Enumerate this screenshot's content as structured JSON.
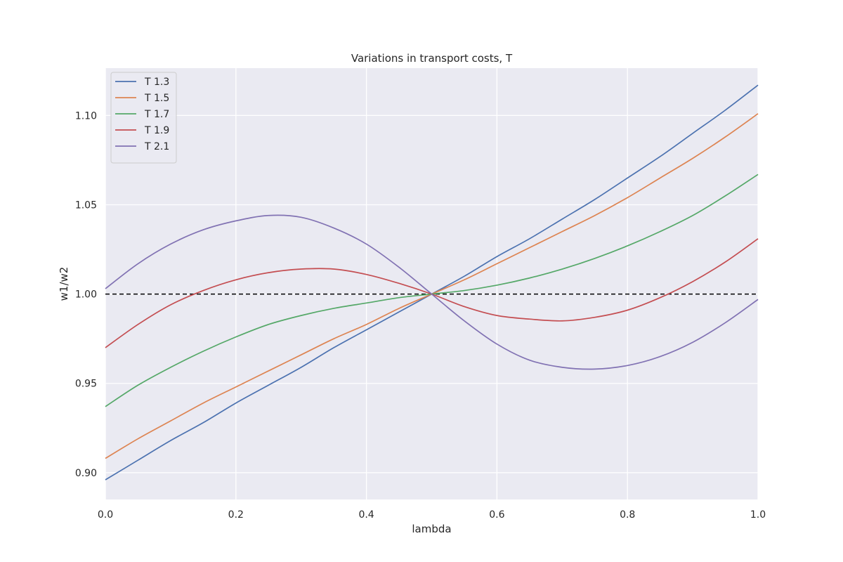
{
  "chart_data": {
    "type": "line",
    "title": "Variations in transport costs, T",
    "xlabel": "lambda",
    "ylabel": "w1/w2",
    "xlim": [
      0.0,
      1.0
    ],
    "ylim": [
      0.885,
      1.1265
    ],
    "xticks": [
      0.0,
      0.2,
      0.4,
      0.6,
      0.8,
      1.0
    ],
    "xtick_labels": [
      "0.0",
      "0.2",
      "0.4",
      "0.6",
      "0.8",
      "1.0"
    ],
    "yticks": [
      0.9,
      0.95,
      1.0,
      1.05,
      1.1
    ],
    "ytick_labels": [
      "0.90",
      "0.95",
      "1.00",
      "1.05",
      "1.10"
    ],
    "grid": true,
    "background": "#eaeaf2",
    "legend_position": "upper-left",
    "reference_line": {
      "y": 1.0,
      "style": "dashed",
      "color": "#000000"
    },
    "x": [
      0.0,
      0.05,
      0.1,
      0.15,
      0.2,
      0.25,
      0.3,
      0.35,
      0.4,
      0.45,
      0.5,
      0.55,
      0.6,
      0.65,
      0.7,
      0.75,
      0.8,
      0.85,
      0.9,
      0.95,
      1.0
    ],
    "series": [
      {
        "name": "T 1.3",
        "color": "#4c72b0",
        "values": [
          0.896,
          0.907,
          0.918,
          0.928,
          0.939,
          0.949,
          0.959,
          0.97,
          0.98,
          0.99,
          1.0,
          1.01,
          1.021,
          1.031,
          1.042,
          1.053,
          1.065,
          1.077,
          1.09,
          1.103,
          1.117
        ]
      },
      {
        "name": "T 1.5",
        "color": "#dd8452",
        "values": [
          0.908,
          0.919,
          0.929,
          0.939,
          0.948,
          0.957,
          0.966,
          0.975,
          0.983,
          0.992,
          1.0,
          1.008,
          1.017,
          1.026,
          1.035,
          1.044,
          1.054,
          1.065,
          1.076,
          1.088,
          1.101
        ]
      },
      {
        "name": "T 1.7",
        "color": "#55a868",
        "values": [
          0.937,
          0.949,
          0.959,
          0.968,
          0.976,
          0.983,
          0.988,
          0.992,
          0.995,
          0.998,
          1.0,
          1.002,
          1.005,
          1.009,
          1.014,
          1.02,
          1.027,
          1.035,
          1.044,
          1.055,
          1.067
        ]
      },
      {
        "name": "T 1.9",
        "color": "#c44e52",
        "values": [
          0.97,
          0.983,
          0.994,
          1.002,
          1.008,
          1.012,
          1.014,
          1.014,
          1.011,
          1.006,
          1.0,
          0.993,
          0.988,
          0.986,
          0.985,
          0.987,
          0.991,
          0.998,
          1.007,
          1.018,
          1.031
        ]
      },
      {
        "name": "T 2.1",
        "color": "#8172b3",
        "values": [
          1.003,
          1.017,
          1.028,
          1.036,
          1.041,
          1.044,
          1.043,
          1.037,
          1.028,
          1.015,
          1.0,
          0.985,
          0.972,
          0.963,
          0.959,
          0.958,
          0.96,
          0.965,
          0.973,
          0.984,
          0.997
        ]
      }
    ]
  }
}
